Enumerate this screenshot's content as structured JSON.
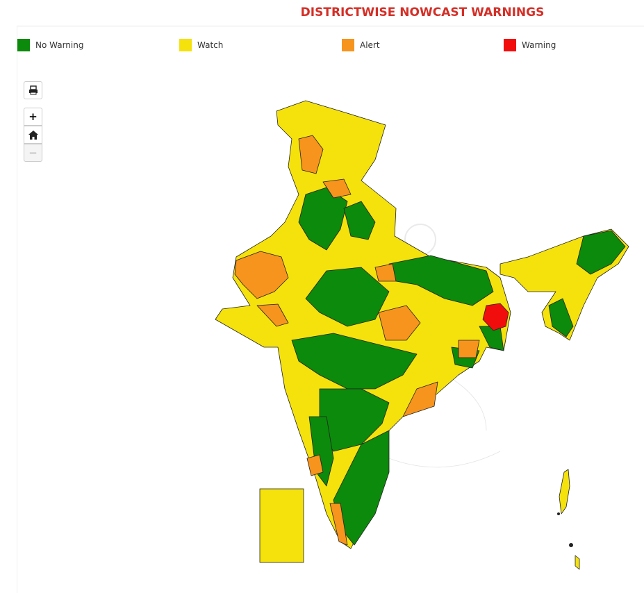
{
  "header": {
    "title": "DISTRICTWISE NOWCAST WARNINGS"
  },
  "legend": [
    {
      "label": "No Warning",
      "color": "#0b8a0b"
    },
    {
      "label": "Watch",
      "color": "#f5e20c"
    },
    {
      "label": "Alert",
      "color": "#f7941d"
    },
    {
      "label": "Warning",
      "color": "#f20d0d"
    }
  ],
  "controls": {
    "zoom_in": "+",
    "zoom_out": "−"
  }
}
